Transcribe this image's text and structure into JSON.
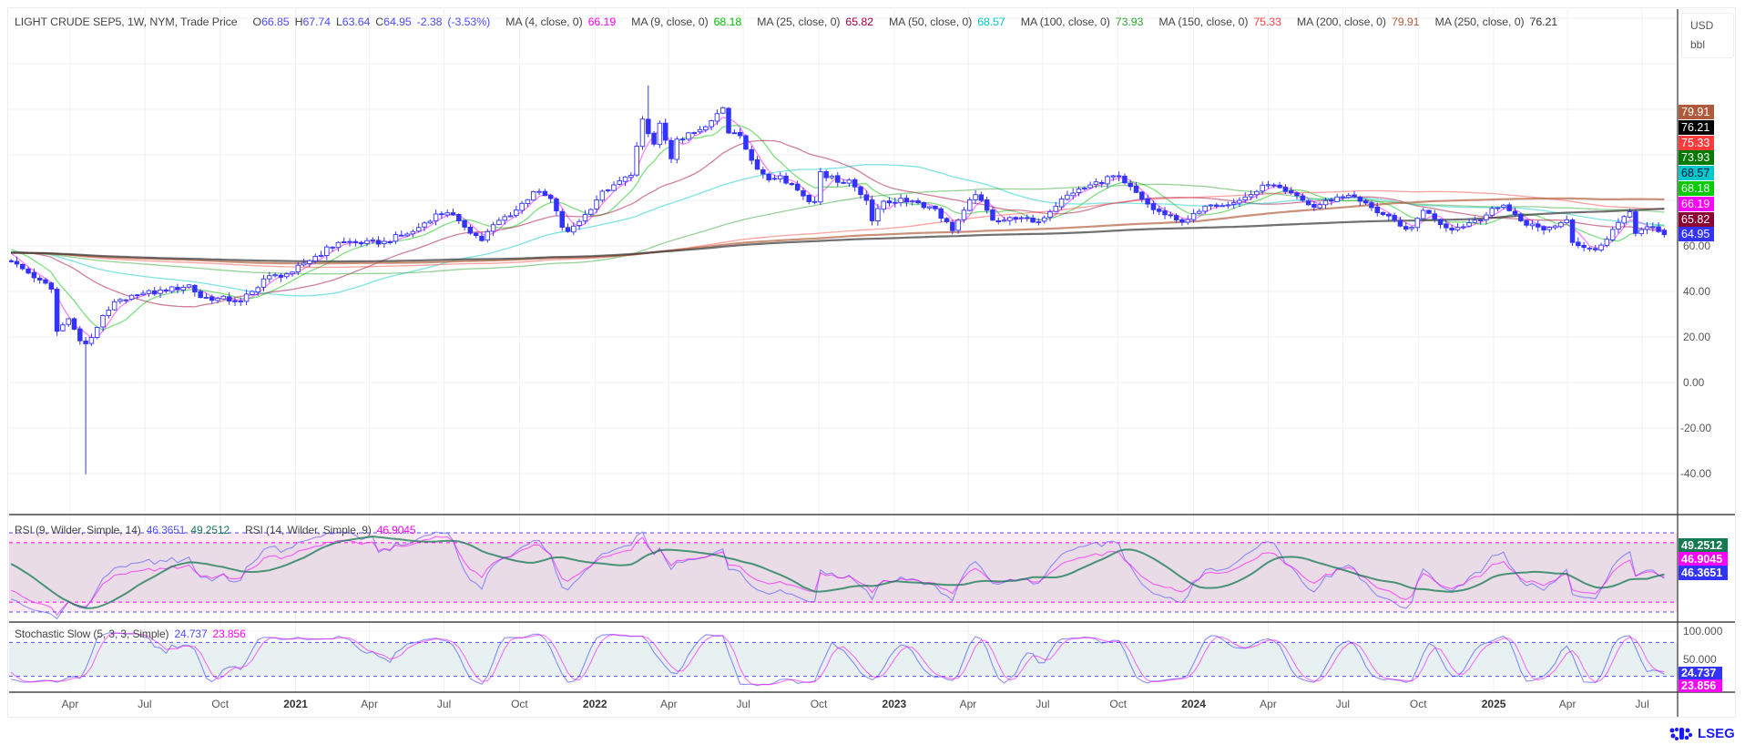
{
  "header": {
    "symbol": "LIGHT CRUDE SEP5, 1W, NYM, Trade Price",
    "open_label": "O",
    "open": "66.85",
    "high_label": "H",
    "high": "67.74",
    "low_label": "L",
    "low": "63.64",
    "close_label": "C",
    "close": "64.95",
    "change": "-2.38",
    "change_pct": "(-3.53%)"
  },
  "moving_averages": [
    {
      "label": "MA (4, close, 0)",
      "value": "66.19",
      "period": 4,
      "color": "#ff00ff",
      "badge_color": "#ff00ff"
    },
    {
      "label": "MA (9, close, 0)",
      "value": "68.18",
      "period": 9,
      "color": "#00c000",
      "badge_color": "#00cc00"
    },
    {
      "label": "MA (25, close, 0)",
      "value": "65.82",
      "period": 25,
      "color": "#a3003c",
      "badge_color": "#8b0030"
    },
    {
      "label": "MA (50, close, 0)",
      "value": "68.57",
      "period": 50,
      "color": "#00c8c8",
      "badge_color": "#00c8c8"
    },
    {
      "label": "MA (100, close, 0)",
      "value": "73.93",
      "period": 100,
      "color": "#2fa52f",
      "badge_color": "#007a00"
    },
    {
      "label": "MA (150, close, 0)",
      "value": "75.33",
      "period": 150,
      "color": "#ff4444",
      "badge_color": "#ff3b3b"
    },
    {
      "label": "MA (200, close, 0)",
      "value": "79.91",
      "period": 200,
      "color": "#b5613f",
      "badge_color": "#b05a3c"
    },
    {
      "label": "MA (250, close, 0)",
      "value": "76.21",
      "period": 250,
      "color": "#333333",
      "badge_color": "#000000"
    }
  ],
  "price_axis": {
    "currency": "USD",
    "unit": "bbl",
    "labels": [
      "60.00",
      "40.00",
      "20.00",
      "0.00",
      "-20.00",
      "-40.00"
    ],
    "last_price_color": "#3333ff"
  },
  "rsi": {
    "legend1": "RSI (9, Wilder, Simple, 14)",
    "rsi9": "46.3651",
    "rsi9_ma": "49.2512",
    "legend2": "RSI (14, Wilder, Simple, 9)",
    "rsi14": "46.9045",
    "colors": {
      "rsi9": "#5050ff",
      "rsi9_ma": "#147a50",
      "rsi14": "#ff00ff"
    },
    "bands": {
      "outer": [
        10,
        90
      ],
      "inner": [
        20,
        80
      ]
    }
  },
  "stochastic": {
    "legend": "Stochastic Slow (5, 3, 3, Simple)",
    "k": "24.737",
    "d": "23.856",
    "axis_labels": [
      "100.000",
      "50.000"
    ],
    "colors": {
      "k": "#3333ff",
      "d": "#ff00ff"
    },
    "bands": [
      20,
      80
    ]
  },
  "time_axis": [
    {
      "label": "Apr",
      "date": "2020-04-01"
    },
    {
      "label": "Jul",
      "date": "2020-07-01"
    },
    {
      "label": "Oct",
      "date": "2020-10-01"
    },
    {
      "label": "2021",
      "date": "2021-01-01",
      "year": true
    },
    {
      "label": "Apr",
      "date": "2021-04-01"
    },
    {
      "label": "Jul",
      "date": "2021-07-01"
    },
    {
      "label": "Oct",
      "date": "2021-10-01"
    },
    {
      "label": "2022",
      "date": "2022-01-01",
      "year": true
    },
    {
      "label": "Apr",
      "date": "2022-04-01"
    },
    {
      "label": "Jul",
      "date": "2022-07-01"
    },
    {
      "label": "Oct",
      "date": "2022-10-01"
    },
    {
      "label": "2023",
      "date": "2023-01-01",
      "year": true
    },
    {
      "label": "Apr",
      "date": "2023-04-01"
    },
    {
      "label": "Jul",
      "date": "2023-07-01"
    },
    {
      "label": "Oct",
      "date": "2023-10-01"
    },
    {
      "label": "2024",
      "date": "2024-01-01",
      "year": true
    },
    {
      "label": "Apr",
      "date": "2024-04-01"
    },
    {
      "label": "Jul",
      "date": "2024-07-01"
    },
    {
      "label": "Oct",
      "date": "2024-10-01"
    },
    {
      "label": "2025",
      "date": "2025-01-01",
      "year": true
    },
    {
      "label": "Apr",
      "date": "2025-04-01"
    },
    {
      "label": "Jul",
      "date": "2025-07-01"
    }
  ],
  "branding": {
    "logo_text": "LSEG"
  },
  "chart_data": {
    "type": "candlestick",
    "interval": "1W",
    "candle_color": "#3333ff",
    "ylim": [
      -40,
      140
    ],
    "grid": true,
    "approx_weekly_closes": [
      [
        "2020-01-20",
        53
      ],
      [
        "2020-02-24",
        45
      ],
      [
        "2020-03-09",
        41
      ],
      [
        "2020-03-16",
        22.5
      ],
      [
        "2020-03-30",
        28
      ],
      [
        "2020-04-13",
        18.3
      ],
      [
        "2020-04-20",
        17
      ],
      [
        "2020-04-27",
        19.8
      ],
      [
        "2020-05-11",
        29.4
      ],
      [
        "2020-05-25",
        35.5
      ],
      [
        "2020-06-08",
        36.3
      ],
      [
        "2020-06-22",
        38.5
      ],
      [
        "2020-07-27",
        40.3
      ],
      [
        "2020-08-24",
        42.9
      ],
      [
        "2020-09-07",
        37.3
      ],
      [
        "2020-09-28",
        37
      ],
      [
        "2020-10-26",
        35.8
      ],
      [
        "2020-11-09",
        40
      ],
      [
        "2020-11-23",
        45.5
      ],
      [
        "2020-12-28",
        48.5
      ],
      [
        "2021-01-11",
        52.4
      ],
      [
        "2021-02-22",
        61.5
      ],
      [
        "2021-03-15",
        61.4
      ],
      [
        "2021-03-22",
        60.9
      ],
      [
        "2021-04-19",
        62
      ],
      [
        "2021-05-24",
        66.3
      ],
      [
        "2021-06-21",
        74
      ],
      [
        "2021-07-05",
        74.5
      ],
      [
        "2021-07-19",
        71
      ],
      [
        "2021-08-16",
        62.3
      ],
      [
        "2021-08-30",
        69.3
      ],
      [
        "2021-09-27",
        75.8
      ],
      [
        "2021-10-18",
        83.8
      ],
      [
        "2021-11-08",
        80.8
      ],
      [
        "2021-11-22",
        68.2
      ],
      [
        "2021-11-29",
        66.3
      ],
      [
        "2021-12-20",
        73.8
      ],
      [
        "2022-01-10",
        84
      ],
      [
        "2022-01-24",
        86.8
      ],
      [
        "2022-02-14",
        91
      ],
      [
        "2022-02-28",
        115.7
      ],
      [
        "2022-03-07",
        109.3
      ],
      [
        "2022-03-14",
        104.7
      ],
      [
        "2022-03-21",
        113.9
      ],
      [
        "2022-04-04",
        98.3
      ],
      [
        "2022-04-11",
        106.9
      ],
      [
        "2022-05-02",
        109.8
      ],
      [
        "2022-05-23",
        115
      ],
      [
        "2022-06-06",
        120.7
      ],
      [
        "2022-06-13",
        109.6
      ],
      [
        "2022-06-27",
        108.4
      ],
      [
        "2022-07-11",
        97.6
      ],
      [
        "2022-08-01",
        89
      ],
      [
        "2022-08-15",
        90.8
      ],
      [
        "2022-08-29",
        86.9
      ],
      [
        "2022-09-19",
        79.4
      ],
      [
        "2022-09-26",
        79.5
      ],
      [
        "2022-10-03",
        92.6
      ],
      [
        "2022-10-24",
        87.9
      ],
      [
        "2022-11-07",
        88.9
      ],
      [
        "2022-11-28",
        80
      ],
      [
        "2022-12-05",
        71
      ],
      [
        "2022-12-19",
        79.6
      ],
      [
        "2023-01-23",
        79.7
      ],
      [
        "2023-02-20",
        76.3
      ],
      [
        "2023-03-13",
        66.7
      ],
      [
        "2023-03-27",
        75.7
      ],
      [
        "2023-04-10",
        82.5
      ],
      [
        "2023-05-01",
        71.3
      ],
      [
        "2023-05-29",
        71.8
      ],
      [
        "2023-06-26",
        70.6
      ],
      [
        "2023-07-24",
        80.6
      ],
      [
        "2023-08-07",
        83.2
      ],
      [
        "2023-09-25",
        90.8
      ],
      [
        "2023-10-09",
        87.7
      ],
      [
        "2023-10-30",
        80.5
      ],
      [
        "2023-11-13",
        75.9
      ],
      [
        "2023-12-11",
        71.4
      ],
      [
        "2023-12-25",
        71.6
      ],
      [
        "2024-01-22",
        78
      ],
      [
        "2024-02-26",
        80
      ],
      [
        "2024-04-01",
        86.9
      ],
      [
        "2024-04-22",
        83.9
      ],
      [
        "2024-05-27",
        76.99
      ],
      [
        "2024-06-24",
        81.5
      ],
      [
        "2024-07-08",
        82.2
      ],
      [
        "2024-08-05",
        76.8
      ],
      [
        "2024-09-09",
        68.7
      ],
      [
        "2024-09-23",
        68.2
      ],
      [
        "2024-10-07",
        75.6
      ],
      [
        "2024-10-21",
        71.8
      ],
      [
        "2024-11-11",
        67
      ],
      [
        "2024-12-09",
        71.3
      ],
      [
        "2025-01-13",
        77.9
      ],
      [
        "2025-02-03",
        71
      ],
      [
        "2025-03-03",
        67
      ],
      [
        "2025-03-31",
        71.5
      ],
      [
        "2025-04-07",
        61.5
      ],
      [
        "2025-05-05",
        58.3
      ],
      [
        "2025-06-09",
        72.9
      ],
      [
        "2025-06-16",
        75
      ],
      [
        "2025-06-23",
        65.5
      ],
      [
        "2025-07-07",
        68.4
      ],
      [
        "2025-07-21",
        66.3
      ],
      [
        "2025-07-28",
        64.95
      ]
    ],
    "extreme_wicks": [
      {
        "date": "2020-04-20",
        "low": -40.32
      },
      {
        "date": "2022-03-07",
        "high": 130.5
      }
    ],
    "last_candle": {
      "date": "2025-07-28",
      "open": 66.85,
      "high": 67.74,
      "low": 63.64,
      "close": 64.95
    }
  }
}
